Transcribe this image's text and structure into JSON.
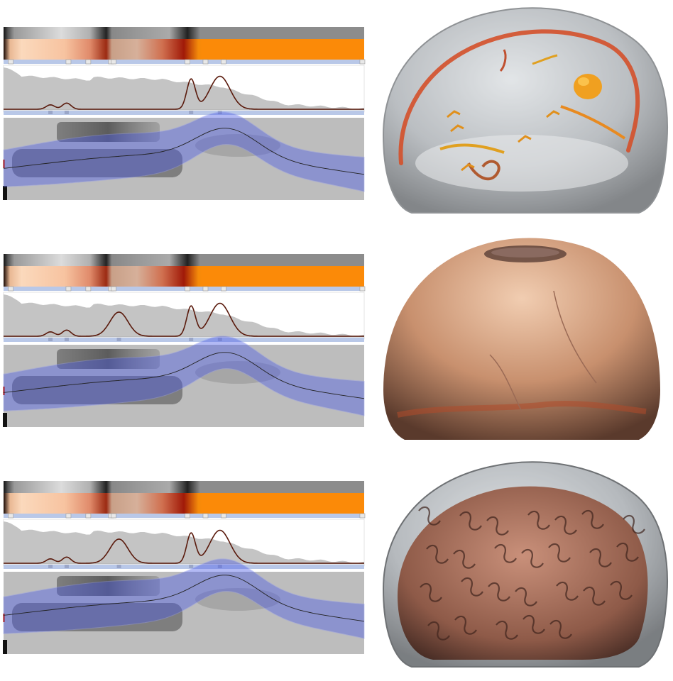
{
  "colors": {
    "background": "#ffffff",
    "histogram_fill": "#c4c4c4",
    "curve": "#5a1a0c",
    "lens_fill": "#4a5ae6",
    "lens_edge": "#8f98ee",
    "strip": "#b9c8e8",
    "handle": "#c9c9c9",
    "gray_bar": "#8a8a8a",
    "orange": "#fb8a08",
    "peach": "#fbd7b6",
    "bone": "#c8906e",
    "brain": "#b87050",
    "vessel": "#d4502a",
    "blob": "#f0a020",
    "shell": "#8a8e92"
  },
  "panels": [
    {
      "name": "vessels",
      "peaks": [
        [
          0.13,
          0.1,
          0.012
        ],
        [
          0.175,
          0.14,
          0.012
        ],
        [
          0.52,
          0.68,
          0.012
        ],
        [
          0.6,
          0.75,
          0.028
        ]
      ],
      "band": "low"
    },
    {
      "name": "skull",
      "peaks": [
        [
          0.13,
          0.1,
          0.012
        ],
        [
          0.175,
          0.14,
          0.012
        ],
        [
          0.32,
          0.55,
          0.025
        ],
        [
          0.52,
          0.68,
          0.012
        ],
        [
          0.6,
          0.75,
          0.028
        ]
      ],
      "band": "mid"
    },
    {
      "name": "brain",
      "peaks": [
        [
          0.13,
          0.1,
          0.012
        ],
        [
          0.175,
          0.14,
          0.012
        ],
        [
          0.32,
          0.55,
          0.025
        ],
        [
          0.52,
          0.68,
          0.012
        ],
        [
          0.6,
          0.75,
          0.028
        ]
      ],
      "band": "high"
    }
  ],
  "icons": {
    "handle": "square-handle-icon"
  }
}
